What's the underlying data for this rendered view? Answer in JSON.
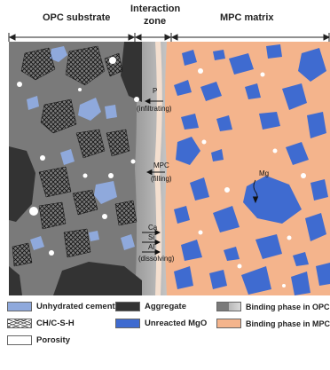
{
  "header": {
    "opc_substrate": "OPC substrate",
    "interaction_zone_line1": "Interaction",
    "interaction_zone_line2": "zone",
    "mpc_matrix": "MPC matrix"
  },
  "annotations": {
    "p": "P",
    "infiltrating": "(infiltrating)",
    "mpc": "MPC",
    "filling": "(filling)",
    "ca": "Ca",
    "si": "Si",
    "al": "Al",
    "dissolving": "(dissolving)",
    "mg": "Mg"
  },
  "legend": {
    "unhydrated_cement": "Unhydrated cement",
    "aggregate": "Aggregate",
    "binding_opc": "Binding phase in OPC",
    "ch_csh": "CH/C-S-H",
    "unreacted_mgo": "Unreacted MgO",
    "binding_mpc": "Binding phase in MPC",
    "porosity": "Porosity"
  },
  "colors": {
    "opc_matrix": "#7a7a7a",
    "interaction_zone": "#a9a9a9",
    "mpc_matrix": "#f4b48c",
    "unhydrated_cement": "#8fa9dc",
    "aggregate": "#333333",
    "unreacted_mgo": "#3f6bd0",
    "porosity": "#ffffff"
  }
}
